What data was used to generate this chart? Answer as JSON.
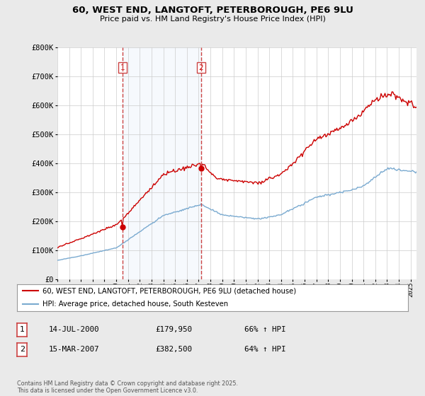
{
  "title": "60, WEST END, LANGTOFT, PETERBOROUGH, PE6 9LU",
  "subtitle": "Price paid vs. HM Land Registry's House Price Index (HPI)",
  "ylabel_ticks": [
    "£0",
    "£100K",
    "£200K",
    "£300K",
    "£400K",
    "£500K",
    "£600K",
    "£700K",
    "£800K"
  ],
  "ylim": [
    0,
    800000
  ],
  "xlim_start": 1995.0,
  "xlim_end": 2025.5,
  "background_color": "#eaeaea",
  "plot_bg_color": "#ffffff",
  "sale1": {
    "date_num": 2000.54,
    "price": 179950,
    "label": "1",
    "date_str": "14-JUL-2000",
    "pct": "66% ↑ HPI"
  },
  "sale2": {
    "date_num": 2007.21,
    "price": 382500,
    "label": "2",
    "date_str": "15-MAR-2007",
    "pct": "64% ↑ HPI"
  },
  "hpi_color": "#7aaad0",
  "price_color": "#cc0000",
  "dashed_color": "#cc4444",
  "legend_label_price": "60, WEST END, LANGTOFT, PETERBOROUGH, PE6 9LU (detached house)",
  "legend_label_hpi": "HPI: Average price, detached house, South Kesteven",
  "footer": "Contains HM Land Registry data © Crown copyright and database right 2025.\nThis data is licensed under the Open Government Licence v3.0.",
  "xtick_years": [
    1995,
    1996,
    1997,
    1998,
    1999,
    2000,
    2001,
    2002,
    2003,
    2004,
    2005,
    2006,
    2007,
    2008,
    2009,
    2010,
    2011,
    2012,
    2013,
    2014,
    2015,
    2016,
    2017,
    2018,
    2019,
    2020,
    2021,
    2022,
    2023,
    2024,
    2025
  ]
}
